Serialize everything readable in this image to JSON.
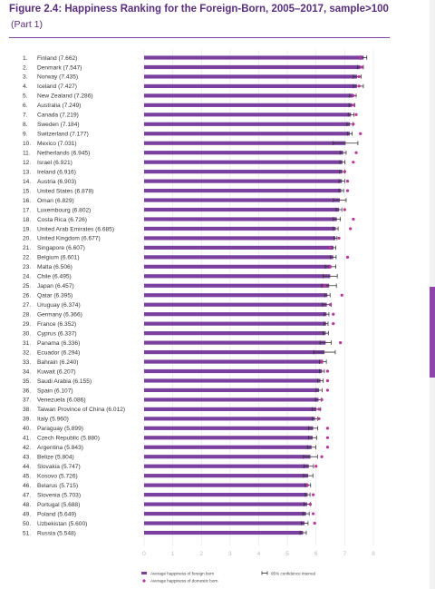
{
  "header": {
    "title": "Figure 2.4: Happiness Ranking for the Foreign-Born, 2005–2017, sample>100",
    "subtitle": "(Part 1)"
  },
  "colors": {
    "bar": "#7b3fa0",
    "dot": "#c0309e",
    "whisker": "#333333",
    "grid": "#e5e5e5"
  },
  "legend": {
    "bar_label": "Average happiness of foreign born",
    "dot_label": "Average happiness of domestic born",
    "ci_label": "95% confidence interval"
  },
  "chart_data": {
    "type": "bar",
    "orientation": "horizontal",
    "xlim": [
      0,
      8
    ],
    "x_ticks": [
      "0",
      "1",
      "2",
      "3",
      "4",
      "5",
      "6",
      "7",
      "8"
    ],
    "categories": [
      {
        "rank": "1.",
        "label": "Finland (7.662)"
      },
      {
        "rank": "2.",
        "label": "Denmark (7.547)"
      },
      {
        "rank": "3.",
        "label": "Norway (7.435)"
      },
      {
        "rank": "4.",
        "label": "Iceland (7.427)"
      },
      {
        "rank": "5.",
        "label": "New Zealand (7.286)"
      },
      {
        "rank": "6.",
        "label": "Australia (7.249)"
      },
      {
        "rank": "7.",
        "label": "Canada (7.219)"
      },
      {
        "rank": "8.",
        "label": "Sweden (7.184)"
      },
      {
        "rank": "9.",
        "label": "Switzerland (7.177)"
      },
      {
        "rank": "10.",
        "label": "Mexico (7.031)"
      },
      {
        "rank": "11.",
        "label": "Netherlands (6.945)"
      },
      {
        "rank": "12.",
        "label": "Israel (6.921)"
      },
      {
        "rank": "13.",
        "label": "Ireland (6.916)"
      },
      {
        "rank": "14.",
        "label": "Austria (6.903)"
      },
      {
        "rank": "15.",
        "label": "United States (6.878)"
      },
      {
        "rank": "16.",
        "label": "Oman (6.829)"
      },
      {
        "rank": "17.",
        "label": "Luxembourg (6.802)"
      },
      {
        "rank": "18.",
        "label": "Costa Rica (6.726)"
      },
      {
        "rank": "19.",
        "label": "United Arab Emirates (6.685)"
      },
      {
        "rank": "20.",
        "label": "United Kingdom (6.677)"
      },
      {
        "rank": "21.",
        "label": "Singapore (6.607)"
      },
      {
        "rank": "22.",
        "label": "Belgium (6.601)"
      },
      {
        "rank": "23.",
        "label": "Malta (6.506)"
      },
      {
        "rank": "24.",
        "label": "Chile (6.495)"
      },
      {
        "rank": "25.",
        "label": "Japan (6.457)"
      },
      {
        "rank": "26.",
        "label": "Qatar (6.395)"
      },
      {
        "rank": "27.",
        "label": "Uruguay (6.374)"
      },
      {
        "rank": "28.",
        "label": "Germany (6.366)"
      },
      {
        "rank": "29.",
        "label": "France (6.352)"
      },
      {
        "rank": "30.",
        "label": "Cyprus (6.337)"
      },
      {
        "rank": "31.",
        "label": "Panama (6.336)"
      },
      {
        "rank": "32.",
        "label": "Ecuador (6.294)"
      },
      {
        "rank": "33.",
        "label": "Bahrain (6.240)"
      },
      {
        "rank": "34.",
        "label": "Kuwait (6.207)"
      },
      {
        "rank": "35.",
        "label": "Saudi Arabia (6.155)"
      },
      {
        "rank": "36.",
        "label": "Spain (6.107)"
      },
      {
        "rank": "37.",
        "label": "Venezuela (6.086)"
      },
      {
        "rank": "38.",
        "label": "Taiwan Province of China (6.012)"
      },
      {
        "rank": "39.",
        "label": "Italy (5.960)"
      },
      {
        "rank": "40.",
        "label": "Paraguay (5.899)"
      },
      {
        "rank": "41.",
        "label": "Czech Republic (5.880)"
      },
      {
        "rank": "42.",
        "label": "Argentina (5.843)"
      },
      {
        "rank": "43.",
        "label": "Belize (5.804)"
      },
      {
        "rank": "44.",
        "label": "Slovakia (5.747)"
      },
      {
        "rank": "45.",
        "label": "Kosovo (5.726)"
      },
      {
        "rank": "46.",
        "label": "Belarus (5.715)"
      },
      {
        "rank": "47.",
        "label": "Slovenia (5.703)"
      },
      {
        "rank": "48.",
        "label": "Portugal (5.688)"
      },
      {
        "rank": "49.",
        "label": "Poland (5.649)"
      },
      {
        "rank": "50.",
        "label": "Uzbekistan (5.600)"
      },
      {
        "rank": "51.",
        "label": "Russia (5.548)"
      }
    ],
    "series": [
      {
        "name": "Average happiness of foreign born",
        "values": [
          7.662,
          7.547,
          7.435,
          7.427,
          7.286,
          7.249,
          7.219,
          7.184,
          7.177,
          7.031,
          6.945,
          6.921,
          6.916,
          6.903,
          6.878,
          6.829,
          6.802,
          6.726,
          6.685,
          6.677,
          6.607,
          6.601,
          6.506,
          6.495,
          6.457,
          6.395,
          6.374,
          6.366,
          6.352,
          6.337,
          6.336,
          6.294,
          6.24,
          6.207,
          6.155,
          6.107,
          6.086,
          6.012,
          5.96,
          5.899,
          5.88,
          5.843,
          5.804,
          5.747,
          5.726,
          5.715,
          5.703,
          5.688,
          5.649,
          5.6,
          5.548
        ]
      },
      {
        "name": "Average happiness of domestic born",
        "values": [
          7.55,
          7.6,
          7.5,
          7.5,
          7.3,
          7.3,
          7.4,
          7.3,
          7.55,
          null,
          7.4,
          7.3,
          7.0,
          7.1,
          7.1,
          null,
          7.0,
          7.3,
          7.2,
          6.8,
          6.5,
          7.1,
          6.5,
          null,
          6.3,
          6.9,
          6.5,
          6.6,
          6.6,
          null,
          6.85,
          null,
          6.2,
          6.4,
          6.4,
          6.4,
          6.2,
          6.1,
          6.1,
          6.4,
          6.4,
          6.4,
          6.2,
          6.0,
          null,
          5.7,
          5.9,
          5.8,
          5.9,
          5.95,
          null
        ]
      },
      {
        "name": "95% confidence interval",
        "low": [
          7.55,
          7.45,
          7.3,
          7.3,
          7.17,
          7.15,
          7.12,
          7.08,
          7.1,
          6.6,
          6.84,
          6.83,
          6.82,
          6.8,
          6.8,
          6.6,
          6.7,
          6.6,
          6.6,
          6.62,
          6.52,
          6.5,
          6.32,
          6.25,
          6.2,
          6.3,
          6.22,
          6.28,
          6.28,
          6.24,
          6.14,
          5.92,
          6.12,
          6.12,
          6.06,
          6.0,
          5.98,
          5.86,
          5.86,
          5.74,
          5.74,
          5.7,
          5.56,
          5.58,
          5.56,
          5.62,
          5.62,
          5.58,
          5.54,
          5.48,
          5.44
        ],
        "high": [
          7.77,
          7.65,
          7.57,
          7.65,
          7.4,
          7.35,
          7.32,
          7.29,
          7.26,
          7.46,
          7.05,
          7.01,
          7.01,
          7.0,
          6.96,
          7.05,
          6.9,
          6.85,
          6.77,
          6.73,
          6.69,
          6.7,
          6.69,
          6.74,
          6.71,
          6.49,
          6.53,
          6.45,
          6.42,
          6.43,
          6.53,
          6.67,
          6.36,
          6.29,
          6.25,
          6.21,
          6.19,
          6.16,
          6.06,
          6.06,
          6.02,
          5.99,
          6.05,
          5.91,
          5.89,
          5.81,
          5.79,
          5.8,
          5.76,
          5.72,
          5.66
        ]
      }
    ],
    "legend_placement": "bottom",
    "grid": true
  }
}
